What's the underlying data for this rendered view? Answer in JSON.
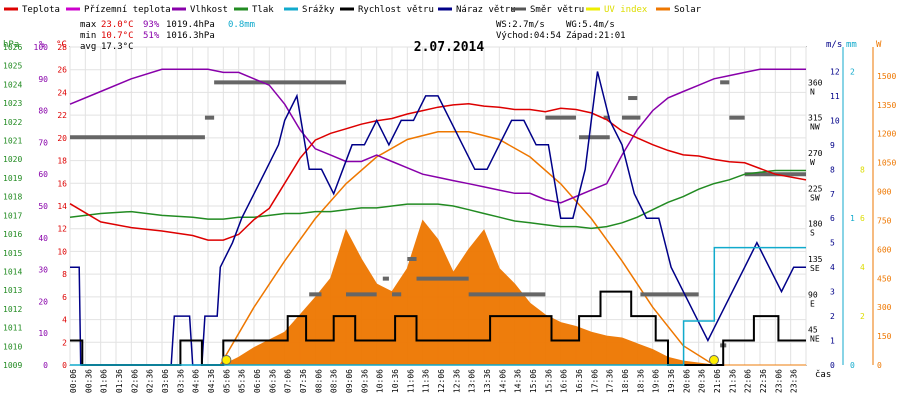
{
  "chart_data": {
    "type": "line",
    "title": "2.07.2014",
    "legend": [
      {
        "name": "Teplota",
        "color": "#dd0000"
      },
      {
        "name": "Přízemní teplota",
        "color": "#cc00cc"
      },
      {
        "name": "Vlhkost",
        "color": "#8800aa"
      },
      {
        "name": "Tlak",
        "color": "#228b22"
      },
      {
        "name": "Srážky",
        "color": "#11aacc"
      },
      {
        "name": "Rychlost větru",
        "color": "#000000"
      },
      {
        "name": "Náraz větru",
        "color": "#000088"
      },
      {
        "name": "Směr větru",
        "color": "#555555"
      },
      {
        "name": "UV index",
        "color": "#eeee00"
      },
      {
        "name": "Solar",
        "color": "#ee7700"
      }
    ],
    "stats": {
      "max_label": "max",
      "max_temp": "23.0°C",
      "max_hum": "93%",
      "max_press": "1019.4hPa",
      "rain": "0.8mm",
      "min_label": "min",
      "min_temp": "10.7°C",
      "min_hum": "51%",
      "min_press": "1016.3hPa",
      "avg_label": "avg",
      "avg_temp": "17.3°C",
      "ws": "WS:2.7m/s",
      "wg": "WG:5.4m/s",
      "sunrise": "Východ:04:54",
      "sunset": "Západ:21:01"
    },
    "axis_units": {
      "hpa": "hPa",
      "pct": "%",
      "deg": "°C",
      "ms": "m/s",
      "mm": "mm",
      "w": "W",
      "time": "čas"
    },
    "x_labels": [
      "00:06",
      "00:36",
      "01:06",
      "01:36",
      "02:06",
      "02:36",
      "03:06",
      "03:36",
      "04:06",
      "04:36",
      "05:06",
      "05:36",
      "06:06",
      "06:36",
      "07:06",
      "07:36",
      "08:06",
      "08:36",
      "09:06",
      "09:36",
      "10:06",
      "10:36",
      "11:06",
      "11:36",
      "12:06",
      "12:36",
      "13:06",
      "13:36",
      "14:06",
      "14:36",
      "15:06",
      "15:36",
      "16:06",
      "16:36",
      "17:06",
      "17:36",
      "18:06",
      "18:36",
      "19:06",
      "19:36",
      "20:06",
      "20:36",
      "21:06",
      "21:36",
      "22:06",
      "22:36",
      "23:06",
      "23:36"
    ],
    "axes": {
      "pressure": {
        "min": 1009,
        "max": 1026,
        "ticks": [
          "1026",
          "1025",
          "1024",
          "1023",
          "1022",
          "1021",
          "1020",
          "1019",
          "1018",
          "1017",
          "1016",
          "1015",
          "1014",
          "1013",
          "1012",
          "1011",
          "1010",
          "1009"
        ]
      },
      "humidity": {
        "min": 0,
        "max": 100,
        "ticks": [
          "100",
          "90",
          "80",
          "70",
          "60",
          "50",
          "40",
          "30",
          "20",
          "10",
          "0"
        ]
      },
      "temperature": {
        "min": 0,
        "max": 28,
        "ticks": [
          "28",
          "26",
          "24",
          "22",
          "20",
          "18",
          "16",
          "14",
          "12",
          "10",
          "8",
          "6",
          "4",
          "2",
          "0"
        ]
      },
      "direction": {
        "ticks": [
          "360",
          "315",
          "270",
          "225",
          "180",
          "135",
          "90",
          "45"
        ],
        "names": [
          "N",
          "NW",
          "W",
          "SW",
          "S",
          "SE",
          "E",
          "NE"
        ]
      },
      "wind": {
        "min": 0,
        "max": 13,
        "ticks": [
          "12",
          "11",
          "10",
          "9",
          "8",
          "7",
          "6",
          "5",
          "4",
          "3",
          "2",
          "1",
          "0"
        ]
      },
      "rain_mm": {
        "ticks": [
          "2",
          "1",
          "0"
        ]
      },
      "uv": {
        "ticks": [
          "8",
          "6",
          "4",
          "2"
        ]
      },
      "solar_w": {
        "ticks": [
          "1500",
          "1350",
          "1200",
          "1050",
          "900",
          "750",
          "600",
          "450",
          "300",
          "150",
          "0"
        ]
      }
    },
    "series": {
      "temperature": {
        "x": [
          0,
          1,
          2,
          3,
          4,
          4.5,
          5,
          5.5,
          6,
          6.5,
          7,
          7.5,
          8,
          8.5,
          9,
          9.5,
          10,
          10.5,
          11,
          11.5,
          12,
          12.5,
          13,
          13.5,
          14,
          14.5,
          15,
          15.5,
          16,
          16.5,
          17,
          17.5,
          18,
          18.5,
          19,
          19.5,
          20,
          20.5,
          21,
          21.5,
          22,
          22.5,
          23,
          24
        ],
        "values": [
          14.2,
          12.6,
          12.1,
          11.8,
          11.4,
          11.0,
          11.0,
          11.5,
          12.8,
          13.8,
          16.0,
          18.2,
          19.8,
          20.4,
          20.8,
          21.2,
          21.5,
          21.7,
          22.1,
          22.4,
          22.7,
          22.9,
          23.0,
          22.8,
          22.7,
          22.5,
          22.5,
          22.3,
          22.6,
          22.5,
          22.2,
          21.6,
          20.6,
          20.0,
          19.4,
          18.9,
          18.5,
          18.4,
          18.1,
          17.9,
          17.8,
          17.3,
          16.8,
          16.3
        ]
      },
      "humidity": {
        "x": [
          0,
          1,
          2,
          3,
          4,
          4.5,
          5,
          5.5,
          6,
          6.5,
          7,
          7.5,
          8,
          8.5,
          9,
          9.5,
          10,
          10.5,
          11,
          11.5,
          12,
          12.5,
          13,
          13.5,
          14,
          14.5,
          15,
          15.5,
          16,
          16.5,
          17,
          17.5,
          18,
          18.5,
          19,
          19.5,
          20,
          20.5,
          21,
          21.5,
          22,
          22.5,
          23,
          24
        ],
        "values": [
          82,
          86,
          90,
          93,
          93,
          93,
          92,
          92,
          90,
          88,
          82,
          74,
          68,
          66,
          64,
          64,
          66,
          64,
          62,
          60,
          59,
          58,
          57,
          56,
          55,
          54,
          54,
          52,
          51,
          53,
          55,
          57,
          66,
          74,
          80,
          84,
          86,
          88,
          90,
          91,
          92,
          93,
          93,
          93
        ]
      },
      "pressure": {
        "x": [
          0,
          1,
          2,
          3,
          4,
          4.5,
          5,
          5.5,
          6,
          6.5,
          7,
          7.5,
          8,
          8.5,
          9,
          9.5,
          10,
          10.5,
          11,
          11.5,
          12,
          12.5,
          13,
          13.5,
          14,
          14.5,
          15,
          15.5,
          16,
          16.5,
          17,
          17.5,
          18,
          18.5,
          19,
          19.5,
          20,
          20.5,
          21,
          21.5,
          22,
          22.5,
          23,
          24
        ],
        "values": [
          1016.9,
          1017.1,
          1017.2,
          1017.0,
          1016.9,
          1016.8,
          1016.8,
          1016.9,
          1016.9,
          1017.0,
          1017.1,
          1017.1,
          1017.2,
          1017.2,
          1017.3,
          1017.4,
          1017.4,
          1017.5,
          1017.6,
          1017.6,
          1017.6,
          1017.5,
          1017.3,
          1017.1,
          1016.9,
          1016.7,
          1016.6,
          1016.5,
          1016.4,
          1016.4,
          1016.3,
          1016.4,
          1016.6,
          1016.9,
          1017.3,
          1017.7,
          1018.0,
          1018.4,
          1018.7,
          1018.9,
          1019.2,
          1019.3,
          1019.4,
          1019.4
        ]
      },
      "wind_speed": {
        "x": [
          0,
          0.3,
          0.4,
          3.5,
          3.6,
          4.2,
          4.3,
          4.9,
          5.0,
          7.0,
          7.1,
          7.6,
          7.7,
          8.5,
          8.6,
          9.2,
          9.3,
          10.5,
          10.6,
          11.2,
          11.3,
          13.6,
          13.7,
          15.6,
          15.7,
          16.5,
          16.6,
          17.2,
          17.3,
          18.2,
          18.3,
          19.0,
          19.1,
          19.4,
          19.5,
          21.2,
          21.3,
          22.2,
          22.3,
          23.0,
          23.1,
          24
        ],
        "values": [
          1,
          1,
          0,
          0,
          1,
          1,
          0,
          0,
          1,
          1,
          2,
          2,
          1,
          1,
          2,
          2,
          1,
          1,
          2,
          2,
          1,
          1,
          2,
          2,
          1,
          1,
          2,
          2,
          3,
          3,
          2,
          2,
          1,
          1,
          0,
          0,
          1,
          1,
          2,
          2,
          1,
          1
        ]
      },
      "wind_gust": {
        "x": [
          0,
          0.3,
          0.35,
          3.3,
          3.4,
          3.9,
          4.0,
          4.3,
          4.4,
          4.8,
          4.9,
          5.3,
          5.6,
          6.0,
          6.4,
          6.8,
          7.0,
          7.4,
          7.8,
          8.2,
          8.6,
          9.2,
          9.6,
          10.0,
          10.4,
          10.8,
          11.2,
          11.6,
          12.0,
          12.4,
          12.8,
          13.2,
          13.6,
          14.0,
          14.4,
          14.8,
          15.2,
          15.6,
          16.0,
          16.4,
          16.8,
          17.0,
          17.2,
          17.6,
          18.0,
          18.4,
          18.8,
          19.2,
          19.6,
          20.0,
          20.4,
          20.8,
          21.2,
          21.6,
          22.0,
          22.4,
          22.8,
          23.2,
          23.6,
          24
        ],
        "values": [
          4,
          4,
          0,
          0,
          2,
          2,
          0,
          0,
          2,
          2,
          4,
          5,
          6,
          7,
          8,
          9,
          10,
          11,
          8,
          8,
          7,
          9,
          9,
          10,
          9,
          10,
          10,
          11,
          11,
          10,
          9,
          8,
          8,
          9,
          10,
          10,
          9,
          9,
          6,
          6,
          8,
          10,
          12,
          10,
          9,
          7,
          6,
          6,
          4,
          3,
          2,
          1,
          2,
          3,
          4,
          5,
          4,
          3,
          4,
          4
        ]
      },
      "solar": {
        "x": [
          0,
          5,
          5.5,
          6,
          6.5,
          7,
          7.5,
          8,
          8.5,
          9,
          9.5,
          10,
          10.5,
          11,
          11.5,
          12,
          12.5,
          13,
          13.5,
          14,
          14.5,
          15,
          15.5,
          16,
          16.5,
          17,
          17.5,
          18,
          18.5,
          19,
          19.5,
          20,
          21,
          24
        ],
        "values": [
          0,
          0,
          40,
          90,
          130,
          170,
          260,
          350,
          450,
          700,
          550,
          420,
          380,
          500,
          750,
          650,
          480,
          600,
          700,
          500,
          420,
          320,
          260,
          220,
          200,
          170,
          150,
          140,
          110,
          80,
          40,
          20,
          0,
          0
        ]
      },
      "solar_theoretical": {
        "x": [
          4.9,
          6,
          7,
          8,
          9,
          10,
          11,
          12,
          13,
          14,
          15,
          16,
          17,
          18,
          19,
          20,
          21.0
        ],
        "values": [
          0,
          300,
          540,
          760,
          940,
          1080,
          1170,
          1210,
          1210,
          1170,
          1080,
          940,
          760,
          540,
          300,
          100,
          0
        ]
      },
      "rain": {
        "x": [
          0,
          20,
          20.01,
          21.0,
          21.01,
          24
        ],
        "values": [
          0,
          0,
          0.3,
          0.3,
          0.8,
          0.8
        ]
      },
      "uv": {
        "x": [
          5.1,
          21.0
        ],
        "values": [
          0,
          0
        ]
      },
      "wind_direction": [
        {
          "from": 0,
          "to": 4.4,
          "value": 290
        },
        {
          "from": 4.4,
          "to": 4.7,
          "value": 315
        },
        {
          "from": 4.7,
          "to": 9.0,
          "value": 360
        },
        {
          "from": 7.8,
          "to": 8.2,
          "value": 90
        },
        {
          "from": 9.0,
          "to": 10.0,
          "value": 90
        },
        {
          "from": 10.2,
          "to": 10.4,
          "value": 110
        },
        {
          "from": 10.5,
          "to": 10.8,
          "value": 90
        },
        {
          "from": 11.0,
          "to": 11.3,
          "value": 135
        },
        {
          "from": 11.3,
          "to": 13.0,
          "value": 110
        },
        {
          "from": 13.0,
          "to": 15.5,
          "value": 90
        },
        {
          "from": 15.5,
          "to": 16.5,
          "value": 315
        },
        {
          "from": 16.6,
          "to": 17.6,
          "value": 290
        },
        {
          "from": 17.4,
          "to": 17.6,
          "value": 315
        },
        {
          "from": 18.0,
          "to": 18.6,
          "value": 315
        },
        {
          "from": 18.2,
          "to": 18.5,
          "value": 340
        },
        {
          "from": 18.6,
          "to": 20.5,
          "value": 90
        },
        {
          "from": 21.2,
          "to": 21.5,
          "value": 360
        },
        {
          "from": 21.5,
          "to": 22.0,
          "value": 315
        },
        {
          "from": 21.2,
          "to": 21.4,
          "value": 25
        },
        {
          "from": 22.0,
          "to": 24,
          "value": 243
        }
      ]
    }
  }
}
